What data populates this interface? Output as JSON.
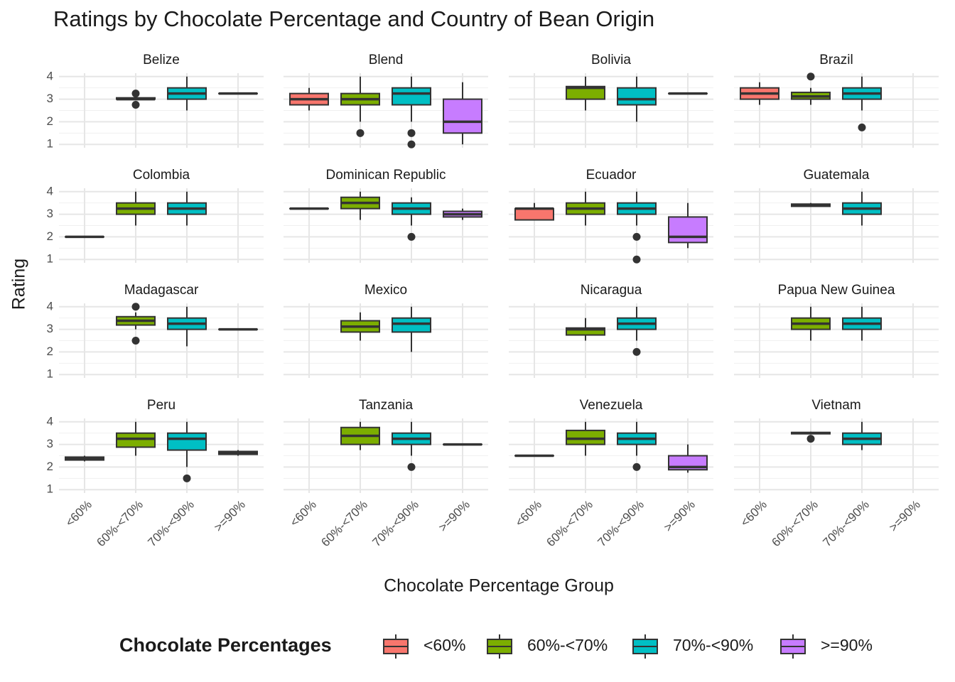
{
  "chart_data": {
    "type": "boxplot",
    "title": "Ratings by Chocolate Percentage and Country of Bean Origin",
    "x_label": "Chocolate Percentage Group",
    "y_label": "Rating",
    "legend_title": "Chocolate Percentages",
    "categories": [
      "<60%",
      "60%-<70%",
      "70%-<90%",
      ">=90%"
    ],
    "colors": [
      "#F8766D",
      "#7CAE00",
      "#00BFC4",
      "#C77CFF"
    ],
    "ylim": [
      0.85,
      4.15
    ],
    "yticks": [
      1,
      2,
      3,
      4
    ],
    "minor_yticks": [
      1.5,
      2.5,
      3.5
    ],
    "grid": true,
    "facets": [
      {
        "name": "Belize",
        "boxes": [
          null,
          {
            "min": 3,
            "q1": 3,
            "median": 3,
            "q3": 3.06,
            "max": 3.06,
            "outliers": [
              3.25,
              2.75
            ]
          },
          {
            "min": 2.5,
            "q1": 3,
            "median": 3.25,
            "q3": 3.5,
            "max": 4
          },
          {
            "min": 3.25,
            "q1": 3.25,
            "median": 3.25,
            "q3": 3.25,
            "max": 3.25
          }
        ]
      },
      {
        "name": "Blend",
        "boxes": [
          {
            "min": 2.5,
            "q1": 2.75,
            "median": 3,
            "q3": 3.25,
            "max": 3.5
          },
          {
            "min": 2,
            "q1": 2.75,
            "median": 3,
            "q3": 3.25,
            "max": 4,
            "outliers": [
              1.5
            ]
          },
          {
            "min": 2,
            "q1": 2.75,
            "median": 3.25,
            "q3": 3.5,
            "max": 4,
            "outliers": [
              1.5,
              1
            ]
          },
          {
            "min": 1,
            "q1": 1.5,
            "median": 2,
            "q3": 3,
            "max": 3.75
          }
        ]
      },
      {
        "name": "Bolivia",
        "boxes": [
          null,
          {
            "min": 2.5,
            "q1": 3,
            "median": 3.5,
            "q3": 3.56,
            "max": 4
          },
          {
            "min": 2,
            "q1": 2.75,
            "median": 3,
            "q3": 3.5,
            "max": 4
          },
          {
            "min": 3.25,
            "q1": 3.25,
            "median": 3.25,
            "q3": 3.25,
            "max": 3.25
          }
        ]
      },
      {
        "name": "Brazil",
        "boxes": [
          {
            "min": 2.75,
            "q1": 3,
            "median": 3.25,
            "q3": 3.5,
            "max": 3.75
          },
          {
            "min": 2.75,
            "q1": 3,
            "median": 3.12,
            "q3": 3.3,
            "max": 3.5,
            "outliers": [
              4
            ]
          },
          {
            "min": 2.5,
            "q1": 3,
            "median": 3.25,
            "q3": 3.5,
            "max": 4,
            "outliers": [
              1.75
            ]
          },
          null
        ]
      },
      {
        "name": "Colombia",
        "boxes": [
          {
            "min": 2,
            "q1": 2,
            "median": 2,
            "q3": 2,
            "max": 2
          },
          {
            "min": 2.5,
            "q1": 3,
            "median": 3.25,
            "q3": 3.5,
            "max": 4
          },
          {
            "min": 2.5,
            "q1": 3,
            "median": 3.25,
            "q3": 3.5,
            "max": 4
          },
          null
        ]
      },
      {
        "name": "Dominican Republic",
        "boxes": [
          {
            "min": 3.25,
            "q1": 3.25,
            "median": 3.25,
            "q3": 3.25,
            "max": 3.25
          },
          {
            "min": 2.75,
            "q1": 3.25,
            "median": 3.5,
            "q3": 3.75,
            "max": 4
          },
          {
            "min": 2.5,
            "q1": 3,
            "median": 3.25,
            "q3": 3.5,
            "max": 3.75,
            "outliers": [
              2
            ]
          },
          {
            "min": 2.75,
            "q1": 2.88,
            "median": 3,
            "q3": 3.13,
            "max": 3.25
          }
        ]
      },
      {
        "name": "Ecuador",
        "boxes": [
          {
            "min": 2.75,
            "q1": 2.75,
            "median": 3.25,
            "q3": 3.25,
            "max": 3.5
          },
          {
            "min": 2.5,
            "q1": 3,
            "median": 3.25,
            "q3": 3.5,
            "max": 4
          },
          {
            "min": 2.5,
            "q1": 3,
            "median": 3.25,
            "q3": 3.5,
            "max": 4,
            "outliers": [
              2,
              1
            ]
          },
          {
            "min": 1.5,
            "q1": 1.75,
            "median": 2,
            "q3": 2.88,
            "max": 3.5
          }
        ]
      },
      {
        "name": "Guatemala",
        "boxes": [
          null,
          {
            "min": 3.35,
            "q1": 3.35,
            "median": 3.4,
            "q3": 3.45,
            "max": 3.5
          },
          {
            "min": 2.5,
            "q1": 3,
            "median": 3.25,
            "q3": 3.5,
            "max": 4
          },
          null
        ]
      },
      {
        "name": "Madagascar",
        "boxes": [
          null,
          {
            "min": 3,
            "q1": 3.19,
            "median": 3.38,
            "q3": 3.56,
            "max": 3.75,
            "outliers": [
              4,
              2.5
            ]
          },
          {
            "min": 2.25,
            "q1": 3,
            "median": 3.25,
            "q3": 3.5,
            "max": 4
          },
          {
            "min": 3,
            "q1": 3,
            "median": 3,
            "q3": 3,
            "max": 3
          }
        ]
      },
      {
        "name": "Mexico",
        "boxes": [
          null,
          {
            "min": 2.5,
            "q1": 2.88,
            "median": 3.12,
            "q3": 3.38,
            "max": 3.75
          },
          {
            "min": 2,
            "q1": 2.88,
            "median": 3.25,
            "q3": 3.5,
            "max": 4
          },
          null
        ]
      },
      {
        "name": "Nicaragua",
        "boxes": [
          null,
          {
            "min": 2.5,
            "q1": 2.75,
            "median": 3,
            "q3": 3.06,
            "max": 3.5
          },
          {
            "min": 2.5,
            "q1": 3,
            "median": 3.25,
            "q3": 3.5,
            "max": 4,
            "outliers": [
              2
            ]
          },
          null
        ]
      },
      {
        "name": "Papua New Guinea",
        "boxes": [
          null,
          {
            "min": 2.5,
            "q1": 3,
            "median": 3.25,
            "q3": 3.5,
            "max": 4
          },
          {
            "min": 2.5,
            "q1": 3,
            "median": 3.25,
            "q3": 3.5,
            "max": 4
          },
          null
        ]
      },
      {
        "name": "Peru",
        "boxes": [
          {
            "min": 2.25,
            "q1": 2.31,
            "median": 2.38,
            "q3": 2.44,
            "max": 2.5
          },
          {
            "min": 2.5,
            "q1": 2.88,
            "median": 3.25,
            "q3": 3.5,
            "max": 4
          },
          {
            "min": 2,
            "q1": 2.75,
            "median": 3.25,
            "q3": 3.5,
            "max": 4,
            "outliers": [
              1.5
            ]
          },
          {
            "min": 2.5,
            "q1": 2.56,
            "median": 2.62,
            "q3": 2.69,
            "max": 2.75
          }
        ]
      },
      {
        "name": "Tanzania",
        "boxes": [
          null,
          {
            "min": 2.75,
            "q1": 3,
            "median": 3.38,
            "q3": 3.75,
            "max": 4
          },
          {
            "min": 2.5,
            "q1": 3,
            "median": 3.25,
            "q3": 3.5,
            "max": 4,
            "outliers": [
              2
            ]
          },
          {
            "min": 3,
            "q1": 3,
            "median": 3,
            "q3": 3,
            "max": 3
          }
        ]
      },
      {
        "name": "Venezuela",
        "boxes": [
          {
            "min": 2.5,
            "q1": 2.5,
            "median": 2.5,
            "q3": 2.5,
            "max": 2.5
          },
          {
            "min": 2.5,
            "q1": 3,
            "median": 3.25,
            "q3": 3.62,
            "max": 4
          },
          {
            "min": 2.5,
            "q1": 3,
            "median": 3.25,
            "q3": 3.5,
            "max": 4,
            "outliers": [
              2
            ]
          },
          {
            "min": 1.75,
            "q1": 1.88,
            "median": 2,
            "q3": 2.5,
            "max": 3
          }
        ]
      },
      {
        "name": "Vietnam",
        "boxes": [
          null,
          {
            "min": 3.44,
            "q1": 3.47,
            "median": 3.5,
            "q3": 3.53,
            "max": 3.56,
            "outliers": [
              3.25
            ]
          },
          {
            "min": 2.75,
            "q1": 3,
            "median": 3.25,
            "q3": 3.5,
            "max": 4
          },
          null
        ]
      }
    ]
  }
}
